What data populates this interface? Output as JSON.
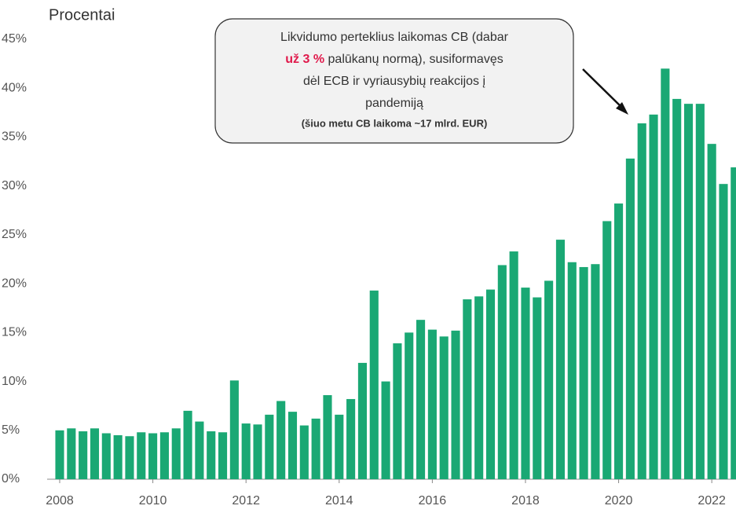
{
  "chart_data": {
    "type": "bar",
    "y_label": "Procentai",
    "annotation": {
      "line1": "Likvidumo perteklius laikomas CB (dabar",
      "highlight": "už 3 %",
      "line2": "palūkanų normą), susiformavęs",
      "line3": "dėl ECB ir vyriausybių reakcijos į",
      "line4": "pandemiją",
      "note": "(šiuo metu CB laikoma ~17 mlrd. EUR)"
    },
    "color": "#1aa874",
    "highlight_color": "#e0194b",
    "x": [
      2008,
      2008.25,
      2008.5,
      2008.75,
      2009,
      2009.25,
      2009.5,
      2009.75,
      2010,
      2010.25,
      2010.5,
      2010.75,
      2011,
      2011.25,
      2011.5,
      2011.75,
      2012,
      2012.25,
      2012.5,
      2012.75,
      2013,
      2013.25,
      2013.5,
      2013.75,
      2014,
      2014.25,
      2014.5,
      2014.75,
      2015,
      2015.25,
      2015.5,
      2015.75,
      2016,
      2016.25,
      2016.5,
      2016.75,
      2017,
      2017.25,
      2017.5,
      2017.75,
      2018,
      2018.25,
      2018.5,
      2018.75,
      2019,
      2019.25,
      2019.5,
      2019.75,
      2020,
      2020.25,
      2020.5,
      2020.75,
      2021,
      2021.25,
      2021.5,
      2021.75,
      2022,
      2022.25,
      2022.5
    ],
    "values": [
      5.0,
      5.2,
      4.9,
      5.2,
      4.7,
      4.5,
      4.4,
      4.8,
      4.7,
      4.8,
      5.2,
      7.0,
      5.9,
      4.9,
      4.8,
      10.1,
      5.7,
      5.6,
      6.6,
      8.0,
      6.9,
      5.5,
      6.2,
      8.6,
      6.6,
      8.2,
      11.9,
      19.3,
      10.0,
      13.9,
      15.0,
      16.3,
      15.3,
      14.6,
      15.2,
      18.4,
      18.7,
      19.4,
      21.9,
      23.3,
      19.6,
      18.6,
      20.3,
      24.5,
      22.2,
      21.7,
      22.0,
      26.4,
      28.2,
      32.8,
      36.4,
      37.3,
      42.0,
      38.9,
      38.4,
      38.4,
      34.3,
      30.2,
      31.9
    ],
    "xlim": [
      2007.73,
      2022.52
    ],
    "xticks": [
      2008,
      2010,
      2012,
      2014,
      2016,
      2018,
      2020,
      2022
    ],
    "ylim": [
      0,
      45
    ],
    "yticks": [
      {
        "value": 0,
        "label": "0%"
      },
      {
        "value": 5,
        "label": "5%"
      },
      {
        "value": 10,
        "label": "10%"
      },
      {
        "value": 15,
        "label": "15%"
      },
      {
        "value": 20,
        "label": "20%"
      },
      {
        "value": 25,
        "label": "25%"
      },
      {
        "value": 30,
        "label": "30%"
      },
      {
        "value": 35,
        "label": "35%"
      },
      {
        "value": 40,
        "label": "40%"
      },
      {
        "value": 45,
        "label": "45%"
      }
    ]
  }
}
